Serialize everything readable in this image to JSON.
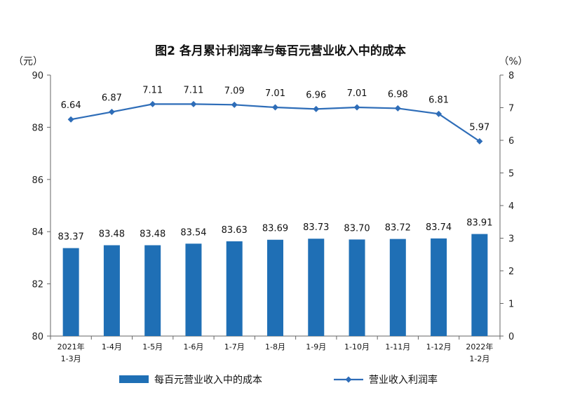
{
  "chart_data": {
    "type": "bar",
    "title": "图2  各月累计利润率与每百元营业收入中的成本",
    "left_unit": "（元）",
    "right_unit": "（%）",
    "categories": [
      [
        "2021年",
        "1-3月"
      ],
      [
        "1-4月"
      ],
      [
        "1-5月"
      ],
      [
        "1-6月"
      ],
      [
        "1-7月"
      ],
      [
        "1-8月"
      ],
      [
        "1-9月"
      ],
      [
        "1-10月"
      ],
      [
        "1-11月"
      ],
      [
        "1-12月"
      ],
      [
        "2022年",
        "1-2月"
      ]
    ],
    "left_axis": {
      "min": 80,
      "max": 90,
      "ticks": [
        80,
        82,
        84,
        86,
        88,
        90
      ]
    },
    "right_axis": {
      "min": 0,
      "max": 8,
      "ticks": [
        0,
        1,
        2,
        3,
        4,
        5,
        6,
        7,
        8
      ]
    },
    "series": [
      {
        "name": "每百元营业收入中的成本",
        "kind": "bar",
        "axis": "left",
        "color": "#1f6fb5",
        "values": [
          83.37,
          83.48,
          83.48,
          83.54,
          83.63,
          83.69,
          83.73,
          83.7,
          83.72,
          83.74,
          83.91
        ],
        "labels": [
          "83.37",
          "83.48",
          "83.48",
          "83.54",
          "83.63",
          "83.69",
          "83.73",
          "83.70",
          "83.72",
          "83.74",
          "83.91"
        ]
      },
      {
        "name": "营业收入利润率",
        "kind": "line",
        "axis": "right",
        "color": "#2e6db8",
        "values": [
          6.64,
          6.87,
          7.11,
          7.11,
          7.09,
          7.01,
          6.96,
          7.01,
          6.98,
          6.81,
          5.97
        ],
        "labels": [
          "6.64",
          "6.87",
          "7.11",
          "7.11",
          "7.09",
          "7.01",
          "6.96",
          "7.01",
          "6.98",
          "6.81",
          "5.97"
        ]
      }
    ],
    "legend_position": "bottom",
    "grid": false
  }
}
